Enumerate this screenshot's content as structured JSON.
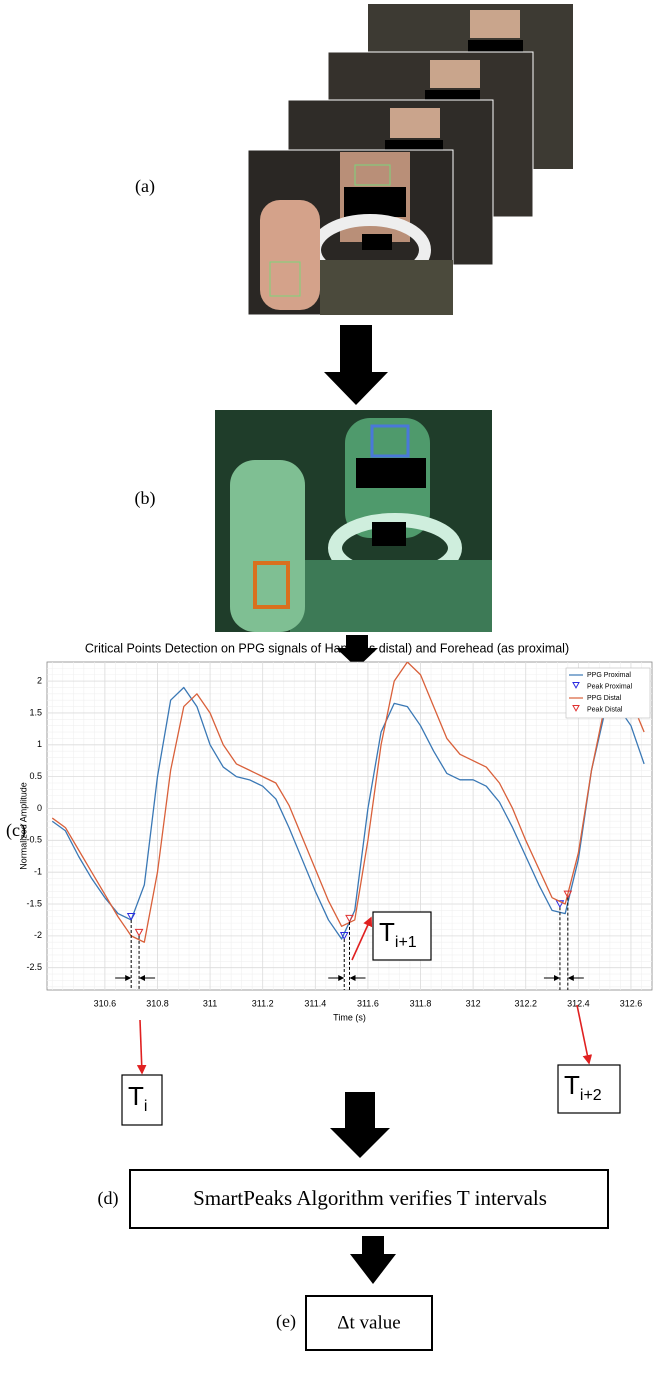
{
  "labels": [
    "(a)",
    "(b)",
    "(c)",
    "(d)",
    "(e)"
  ],
  "chart_data": {
    "type": "line",
    "title": "Critical Points Detection on PPG signals of Hand (as distal) and Forehead (as proximal)",
    "x_label": "Time (s)",
    "y_label": "Normalized Amplitude",
    "xlim": [
      310.38,
      312.68
    ],
    "ylim": [
      -2.85,
      2.3
    ],
    "xticks": [
      310.6,
      310.8,
      311,
      311.2,
      311.4,
      311.6,
      311.8,
      312,
      312.2,
      312.4,
      312.6
    ],
    "yticks": [
      -2.5,
      -2,
      -1.5,
      -1,
      -0.5,
      0,
      0.5,
      1,
      1.5,
      2
    ],
    "grid": true,
    "legend": "upper right",
    "x": [
      310.4,
      310.45,
      310.5,
      310.55,
      310.6,
      310.65,
      310.7,
      310.75,
      310.8,
      310.85,
      310.9,
      310.95,
      311,
      311.05,
      311.1,
      311.15,
      311.2,
      311.25,
      311.3,
      311.35,
      311.4,
      311.45,
      311.5,
      311.55,
      311.6,
      311.65,
      311.7,
      311.75,
      311.8,
      311.85,
      311.9,
      311.95,
      312,
      312.05,
      312.1,
      312.15,
      312.2,
      312.25,
      312.3,
      312.35,
      312.4,
      312.45,
      312.5,
      312.55,
      312.6,
      312.65
    ],
    "series": [
      {
        "name": "PPG Proximal",
        "color": "#3a78b5",
        "values": [
          -0.2,
          -0.35,
          -0.75,
          -1.1,
          -1.4,
          -1.65,
          -1.75,
          -1.2,
          0.5,
          1.7,
          1.9,
          1.6,
          1.0,
          0.65,
          0.5,
          0.45,
          0.35,
          0.15,
          -0.3,
          -0.8,
          -1.3,
          -1.75,
          -2.05,
          -1.6,
          0.0,
          1.2,
          1.65,
          1.6,
          1.3,
          0.9,
          0.55,
          0.45,
          0.45,
          0.35,
          0.1,
          -0.3,
          -0.75,
          -1.2,
          -1.6,
          -1.65,
          -0.8,
          0.6,
          1.5,
          1.6,
          1.3,
          0.7
        ]
      },
      {
        "name": "Peak Proximal",
        "color": "#2a2ae0",
        "marker": "triangle-down",
        "x": [
          310.7,
          311.51,
          312.33
        ],
        "values": [
          -1.75,
          -2.05,
          -1.55
        ]
      },
      {
        "name": "PPG Distal",
        "color": "#d9603a",
        "values": [
          -0.15,
          -0.3,
          -0.65,
          -1.0,
          -1.35,
          -1.7,
          -2.0,
          -2.1,
          -1.0,
          0.6,
          1.6,
          1.8,
          1.5,
          1.0,
          0.7,
          0.6,
          0.5,
          0.4,
          0.05,
          -0.45,
          -0.95,
          -1.45,
          -1.85,
          -1.75,
          -0.5,
          1.0,
          2.0,
          2.3,
          2.1,
          1.6,
          1.1,
          0.85,
          0.75,
          0.65,
          0.4,
          0.0,
          -0.5,
          -0.95,
          -1.4,
          -1.5,
          -0.7,
          0.6,
          1.6,
          1.9,
          1.7,
          1.2
        ]
      },
      {
        "name": "Peak Distal",
        "color": "#e03030",
        "marker": "triangle-down",
        "x": [
          310.73,
          311.53,
          312.36
        ],
        "values": [
          -2.0,
          -1.78,
          -1.4
        ]
      }
    ],
    "intervals": [
      {
        "base": "T",
        "sub": "i"
      },
      {
        "base": "T",
        "sub": "i+1"
      },
      {
        "base": "T",
        "sub": "i+2"
      }
    ]
  },
  "steps": {
    "verify": "SmartPeaks Algorithm verifies T intervals",
    "result": "Δt value"
  }
}
